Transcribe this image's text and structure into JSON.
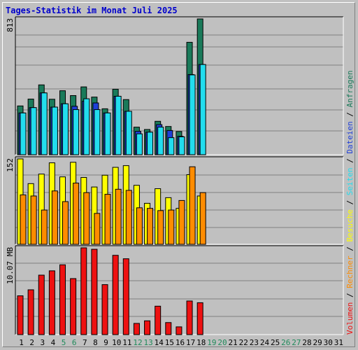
{
  "title": "Tages-Statistik im Monat Juli 2025",
  "colors": {
    "anfragen": "#1a7a5a",
    "dateien": "#1f3fd8",
    "seiten": "#22ddee",
    "besuche": "#ffff00",
    "rechner": "#ff8c00",
    "volumen": "#ee1111",
    "weekend_day": "#1f8a5a",
    "weekday": "#000000"
  },
  "chart_data": [
    {
      "type": "bar",
      "name": "hits-files-pages",
      "scale_label": "813",
      "ylim": [
        0,
        813
      ],
      "grid": true,
      "x": [
        "1",
        "2",
        "3",
        "4",
        "5",
        "6",
        "7",
        "8",
        "9",
        "10",
        "11",
        "12",
        "13",
        "14",
        "15",
        "16",
        "17",
        "18",
        "19",
        "20",
        "21",
        "22",
        "23",
        "24",
        "25",
        "26",
        "27",
        "28",
        "29",
        "30",
        "31"
      ],
      "series": [
        {
          "name": "Anfragen",
          "values": [
            292,
            333,
            418,
            332,
            383,
            354,
            406,
            345,
            275,
            392,
            330,
            165,
            151,
            200,
            169,
            139,
            673,
            813,
            0,
            0,
            0,
            0,
            0,
            0,
            0,
            0,
            0,
            0,
            0,
            0,
            0
          ]
        },
        {
          "name": "Dateien",
          "values": [
            250,
            282,
            370,
            285,
            305,
            290,
            320,
            310,
            250,
            350,
            260,
            140,
            135,
            180,
            145,
            110,
            480,
            540,
            0,
            0,
            0,
            0,
            0,
            0,
            0,
            0,
            0,
            0,
            0,
            0,
            0
          ]
        },
        {
          "name": "Seiten",
          "values": [
            250,
            282,
            370,
            285,
            305,
            270,
            335,
            270,
            250,
            350,
            260,
            125,
            135,
            165,
            102,
            107,
            478,
            540,
            0,
            0,
            0,
            0,
            0,
            0,
            0,
            0,
            0,
            0,
            0,
            0,
            0
          ]
        }
      ]
    },
    {
      "type": "bar",
      "name": "visits-sites",
      "scale_label": "152",
      "ylim": [
        0,
        152
      ],
      "grid": true,
      "series": [
        {
          "name": "Besuche",
          "values": [
            152,
            108,
            125,
            145,
            120,
            146,
            119,
            102,
            123,
            137,
            140,
            105,
            73,
            99,
            83,
            64,
            124,
            86,
            0,
            0,
            0,
            0,
            0,
            0,
            0,
            0,
            0,
            0,
            0,
            0,
            0
          ]
        },
        {
          "name": "Rechner",
          "values": [
            88,
            86,
            61,
            95,
            76,
            109,
            92,
            55,
            89,
            98,
            96,
            65,
            64,
            60,
            61,
            78,
            138,
            92,
            0,
            0,
            0,
            0,
            0,
            0,
            0,
            0,
            0,
            0,
            0,
            0,
            0
          ]
        }
      ]
    },
    {
      "type": "bar",
      "name": "volume",
      "scale_label": "10.07 MB",
      "ylim": [
        0,
        10.07
      ],
      "grid": true,
      "series": [
        {
          "name": "Volumen",
          "values": [
            4.5,
            5.2,
            6.9,
            7.4,
            8.1,
            6.5,
            10.07,
            9.9,
            5.8,
            9.2,
            8.8,
            1.3,
            1.6,
            3.3,
            1.4,
            0.9,
            3.9,
            3.7,
            0,
            0,
            0,
            0,
            0,
            0,
            0,
            0,
            0,
            0,
            0,
            0,
            0
          ]
        }
      ]
    }
  ],
  "weekend_days": [
    5,
    6,
    12,
    13,
    19,
    20,
    26,
    27
  ],
  "legend": {
    "group1": [
      {
        "label": "Anfragen",
        "color_key": "anfragen"
      },
      {
        "label": "Dateien",
        "color_key": "dateien"
      },
      {
        "label": "Seiten",
        "color_key": "seiten"
      },
      {
        "label": "Besuche",
        "color_key": "besuche"
      },
      {
        "label": "Rechner",
        "color_key": "rechner"
      },
      {
        "label": "Volumen",
        "color_key": "volumen"
      }
    ],
    "separator": " / "
  }
}
